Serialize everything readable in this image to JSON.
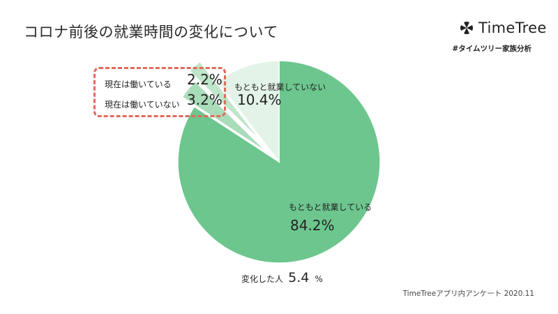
{
  "title": "コロナ前後の就業時間の変化について",
  "brand": {
    "name": "TimeTree",
    "hashtag": "#タイムツリー家族分析"
  },
  "footer": "TimeTreeアプリ内アンケート 2020.11",
  "changed_label": "変化した人",
  "changed_value": "5.4",
  "changed_unit": "%",
  "slice_labels": [
    {
      "label": "もともと就業している",
      "value_text": "84.2%"
    },
    {
      "label": "現在は働いていない",
      "value_text": "3.2%"
    },
    {
      "label": "現在は働いている",
      "value_text": "2.2%"
    },
    {
      "label": "もともと就業していない",
      "value_text": "10.4%"
    }
  ],
  "colors": {
    "slice_main": "#6cc68e",
    "slice_not_working_now": "#a9dcb9",
    "slice_working_now": "#bfe5ca",
    "slice_never": "#e3f3e8",
    "dash_box": "#e06a5a"
  },
  "chart_data": {
    "type": "pie",
    "title": "コロナ前後の就業時間の変化について",
    "labels": [
      "もともと就業している",
      "現在は働いていない",
      "現在は働いている",
      "もともと就業していない"
    ],
    "values": [
      84.2,
      3.2,
      2.2,
      10.4
    ],
    "unit": "%",
    "start": "12 o'clock",
    "direction": "clockwise",
    "exploded": [
      "現在は働いていない",
      "現在は働いている"
    ]
  }
}
